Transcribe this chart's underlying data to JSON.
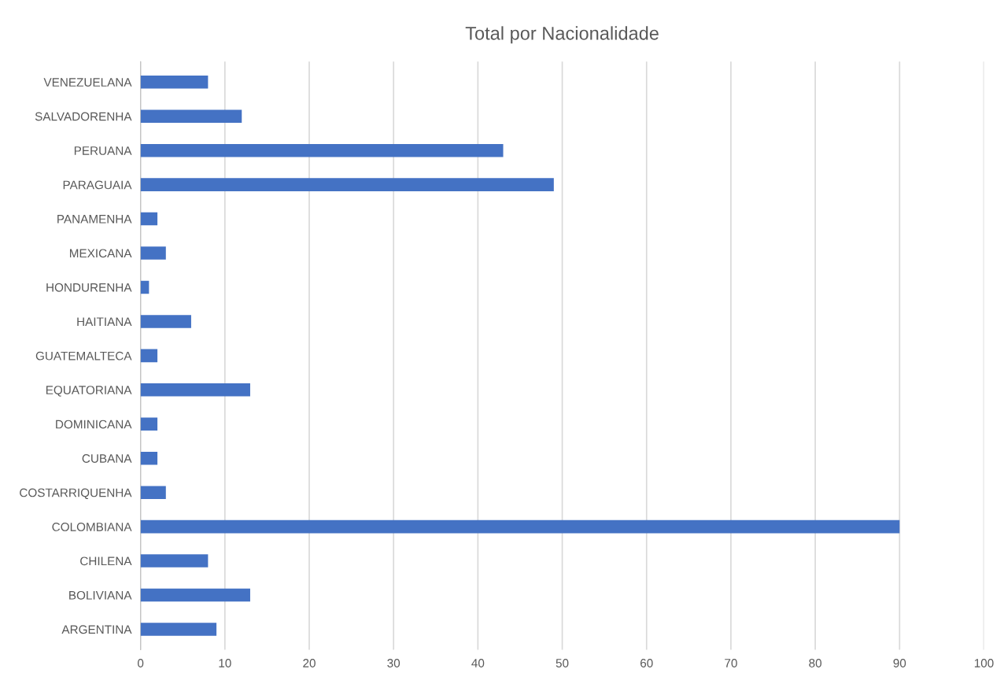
{
  "chart_data": {
    "type": "bar",
    "orientation": "horizontal",
    "title": "Total por Nacionalidade",
    "categories": [
      "VENEZUELANA",
      "SALVADORENHA",
      "PERUANA",
      "PARAGUAIA",
      "PANAMENHA",
      "MEXICANA",
      "HONDURENHA",
      "HAITIANA",
      "GUATEMALTECA",
      "EQUATORIANA",
      "DOMINICANA",
      "CUBANA",
      "COSTARRIQUENHA",
      "COLOMBIANA",
      "CHILENA",
      "BOLIVIANA",
      "ARGENTINA"
    ],
    "values": [
      8,
      12,
      43,
      49,
      2,
      3,
      1,
      6,
      2,
      13,
      2,
      2,
      3,
      90,
      8,
      13,
      9
    ],
    "color": "#4472c4",
    "xlim": [
      0,
      100
    ],
    "xticks": [
      0,
      10,
      20,
      30,
      40,
      50,
      60,
      70,
      80,
      90,
      100
    ],
    "grid": "x"
  }
}
